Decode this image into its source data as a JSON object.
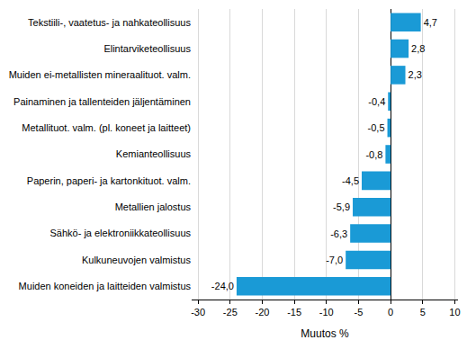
{
  "chart_data": {
    "type": "bar",
    "orientation": "horizontal",
    "x_label": "Muutos %",
    "categories": [
      "Tekstiili-, vaatetus- ja nahkateollisuus",
      "Elintarviketeollisuus",
      "Muiden ei-metallisten mineraalituot. valm.",
      "Painaminen ja tallenteiden jäljentäminen",
      "Metallituot. valm. (pl. koneet ja laitteet)",
      "Kemianteollisuus",
      "Paperin, paperi- ja kartonkituot. valm.",
      "Metallien jalostus",
      "Sähkö- ja elektroniikkateollisuus",
      "Kulkuneuvojen valmistus",
      "Muiden koneiden ja laitteiden valmistus"
    ],
    "values": [
      4.7,
      2.8,
      2.3,
      -0.4,
      -0.5,
      -0.8,
      -4.5,
      -5.9,
      -6.3,
      -7.0,
      -24.0
    ],
    "value_labels": [
      "4,7",
      "2,8",
      "2,3",
      "-0,4",
      "-0,5",
      "-0,8",
      "-4,5",
      "-5,9",
      "-6,3",
      "-7,0",
      "-24,0"
    ],
    "data_labels": true,
    "color": "#1a9ad6",
    "xlim": [
      -31,
      10.5
    ],
    "xticks": [
      -30,
      -25,
      -20,
      -15,
      -10,
      -5,
      0,
      5,
      10
    ],
    "grid": true
  }
}
